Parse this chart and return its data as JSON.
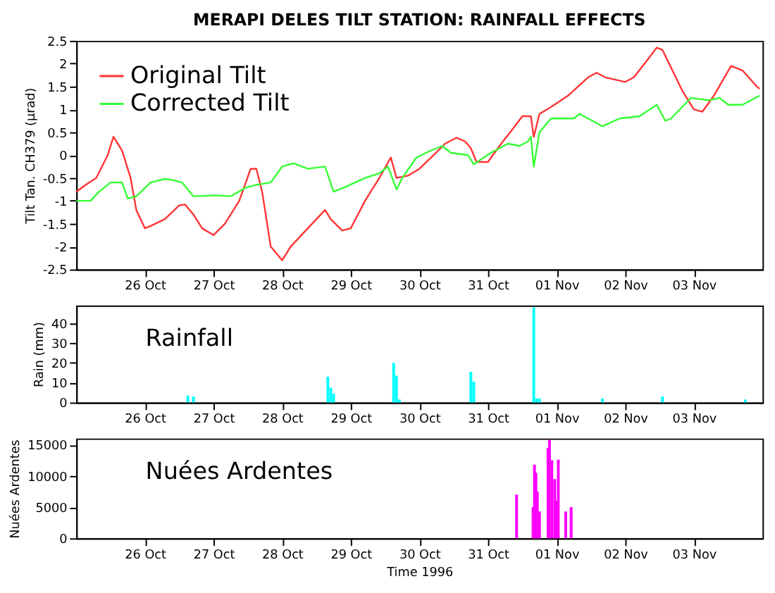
{
  "chart_data": [
    {
      "type": "line",
      "title": "MERAPI DELES TILT STATION: RAINFALL EFFECTS",
      "ylabel": "Tilt Tan. CH379 (µrad)",
      "legend": "top left",
      "grid": false,
      "marker": "none",
      "line_style": "solid",
      "xlim": [
        "1996-10-25T00:00",
        "1996-11-04T00:00"
      ],
      "xticks": [
        {
          "value": "1996-10-26",
          "label": "26 Oct"
        },
        {
          "value": "1996-10-27",
          "label": "27 Oct"
        },
        {
          "value": "1996-10-28",
          "label": "28 Oct"
        },
        {
          "value": "1996-10-29",
          "label": "29 Oct"
        },
        {
          "value": "1996-10-30",
          "label": "30 Oct"
        },
        {
          "value": "1996-10-31",
          "label": "31 Oct"
        },
        {
          "value": "1996-11-01",
          "label": "01 Nov"
        },
        {
          "value": "1996-11-02",
          "label": "02 Nov"
        },
        {
          "value": "1996-11-03",
          "label": "03 Nov"
        }
      ],
      "ylim": [
        -2.5,
        2.5
      ],
      "yticks": [
        -2.5,
        -2,
        -1.5,
        -1,
        -0.5,
        0,
        0.5,
        1,
        1.5,
        2,
        2.5
      ],
      "series": [
        {
          "name": "Original Tilt",
          "color": "#ff3333",
          "x": [
            "1996-10-25T00:00",
            "1996-10-25T04:00",
            "1996-10-25T07:00",
            "1996-10-25T11:00",
            "1996-10-25T13:00",
            "1996-10-25T16:00",
            "1996-10-25T19:00",
            "1996-10-25T21:00",
            "1996-10-26T00:00",
            "1996-10-26T02:00",
            "1996-10-26T07:00",
            "1996-10-26T12:00",
            "1996-10-26T14:00",
            "1996-10-26T17:00",
            "1996-10-26T20:00",
            "1996-10-27T00:00",
            "1996-10-27T04:00",
            "1996-10-27T09:00",
            "1996-10-27T13:00",
            "1996-10-27T15:00",
            "1996-10-27T17:00",
            "1996-10-27T20:00",
            "1996-10-28T00:00",
            "1996-10-28T03:00",
            "1996-10-28T09:00",
            "1996-10-28T15:00",
            "1996-10-28T17:00",
            "1996-10-28T21:00",
            "1996-10-29T00:00",
            "1996-10-29T05:00",
            "1996-10-29T10:00",
            "1996-10-29T14:00",
            "1996-10-29T16:00",
            "1996-10-29T20:00",
            "1996-10-30T00:00",
            "1996-10-30T05:00",
            "1996-10-30T09:00",
            "1996-10-30T13:00",
            "1996-10-30T16:00",
            "1996-10-30T18:00",
            "1996-10-30T20:00",
            "1996-10-31T00:00",
            "1996-10-31T04:00",
            "1996-10-31T09:00",
            "1996-10-31T12:00",
            "1996-10-31T15:00",
            "1996-10-31T16:00",
            "1996-10-31T18:00",
            "1996-10-31T22:00",
            "1996-11-01T04:00",
            "1996-11-01T11:00",
            "1996-11-01T14:00",
            "1996-11-01T17:00",
            "1996-11-02T00:00",
            "1996-11-02T03:00",
            "1996-11-02T08:00",
            "1996-11-02T11:00",
            "1996-11-02T13:00",
            "1996-11-02T20:00",
            "1996-11-03T00:00",
            "1996-11-03T03:00",
            "1996-11-03T07:00",
            "1996-11-03T13:00",
            "1996-11-03T17:00",
            "1996-11-03T22:00",
            "1996-11-03T23:00"
          ],
          "values": [
            -0.8,
            -0.62,
            -0.5,
            0.0,
            0.4,
            0.1,
            -0.5,
            -1.2,
            -1.6,
            -1.55,
            -1.4,
            -1.1,
            -1.08,
            -1.3,
            -1.6,
            -1.75,
            -1.5,
            -1.0,
            -0.3,
            -0.3,
            -0.8,
            -2.0,
            -2.3,
            -2.0,
            -1.6,
            -1.2,
            -1.4,
            -1.65,
            -1.6,
            -1.0,
            -0.5,
            -0.05,
            -0.5,
            -0.45,
            -0.3,
            0.0,
            0.25,
            0.38,
            0.3,
            0.15,
            -0.15,
            -0.15,
            0.2,
            0.6,
            0.85,
            0.85,
            0.4,
            0.9,
            1.05,
            1.3,
            1.7,
            1.8,
            1.7,
            1.6,
            1.7,
            2.1,
            2.35,
            2.3,
            1.4,
            1.0,
            0.95,
            1.3,
            1.95,
            1.85,
            1.5,
            1.45
          ]
        },
        {
          "name": "Corrected Tilt",
          "color": "#33ff33",
          "x": [
            "1996-10-25T00:00",
            "1996-10-25T05:00",
            "1996-10-25T08:00",
            "1996-10-25T12:00",
            "1996-10-25T16:00",
            "1996-10-25T18:00",
            "1996-10-25T21:00",
            "1996-10-26T02:00",
            "1996-10-26T07:00",
            "1996-10-26T10:00",
            "1996-10-26T13:00",
            "1996-10-26T17:00",
            "1996-10-27T01:00",
            "1996-10-27T06:00",
            "1996-10-27T11:00",
            "1996-10-27T15:00",
            "1996-10-27T20:00",
            "1996-10-28T00:00",
            "1996-10-28T04:00",
            "1996-10-28T09:00",
            "1996-10-28T15:00",
            "1996-10-28T18:00",
            "1996-10-28T22:00",
            "1996-10-29T05:00",
            "1996-10-29T10:00",
            "1996-10-29T13:00",
            "1996-10-29T16:00",
            "1996-10-29T18:00",
            "1996-10-29T23:00",
            "1996-10-30T04:00",
            "1996-10-30T08:00",
            "1996-10-30T11:00",
            "1996-10-30T17:00",
            "1996-10-30T19:00",
            "1996-10-31T01:00",
            "1996-10-31T07:00",
            "1996-10-31T11:00",
            "1996-10-31T14:00",
            "1996-10-31T15:00",
            "1996-10-31T16:00",
            "1996-10-31T18:00",
            "1996-10-31T22:00",
            "1996-11-01T06:00",
            "1996-11-01T08:00",
            "1996-11-01T11:00",
            "1996-11-01T16:00",
            "1996-11-01T22:00",
            "1996-11-02T05:00",
            "1996-11-02T11:00",
            "1996-11-02T14:00",
            "1996-11-02T16:00",
            "1996-11-02T23:00",
            "1996-11-03T05:00",
            "1996-11-03T09:00",
            "1996-11-03T12:00",
            "1996-11-03T17:00",
            "1996-11-03T23:00"
          ],
          "values": [
            -1.0,
            -1.0,
            -0.8,
            -0.6,
            -0.6,
            -0.95,
            -0.9,
            -0.6,
            -0.52,
            -0.55,
            -0.6,
            -0.9,
            -0.88,
            -0.9,
            -0.72,
            -0.65,
            -0.6,
            -0.25,
            -0.18,
            -0.3,
            -0.25,
            -0.8,
            -0.7,
            -0.5,
            -0.4,
            -0.25,
            -0.75,
            -0.5,
            -0.05,
            0.1,
            0.2,
            0.05,
            0.0,
            -0.2,
            0.05,
            0.25,
            0.2,
            0.3,
            0.4,
            -0.25,
            0.5,
            0.8,
            0.8,
            0.9,
            0.8,
            0.63,
            0.8,
            0.85,
            1.1,
            0.75,
            0.8,
            1.25,
            1.2,
            1.25,
            1.1,
            1.1,
            1.3
          ]
        }
      ]
    },
    {
      "type": "bar",
      "ylabel": "Rain (mm)",
      "annotations": [
        "Rainfall"
      ],
      "grid": false,
      "color": "#00ffff",
      "xlim": [
        "1996-10-25T00:00",
        "1996-11-04T00:00"
      ],
      "xticks": [
        {
          "value": "1996-10-26",
          "label": "26 Oct"
        },
        {
          "value": "1996-10-27",
          "label": "27 Oct"
        },
        {
          "value": "1996-10-28",
          "label": "28 Oct"
        },
        {
          "value": "1996-10-29",
          "label": "29 Oct"
        },
        {
          "value": "1996-10-30",
          "label": "30 Oct"
        },
        {
          "value": "1996-10-31",
          "label": "31 Oct"
        },
        {
          "value": "1996-11-01",
          "label": "01 Nov"
        },
        {
          "value": "1996-11-02",
          "label": "02 Nov"
        },
        {
          "value": "1996-11-03",
          "label": "03 Nov"
        }
      ],
      "ylim": [
        0,
        49
      ],
      "yticks": [
        0,
        10,
        20,
        30,
        40
      ],
      "x": [
        "1996-10-26T15:00",
        "1996-10-26T17:00",
        "1996-10-28T16:00",
        "1996-10-28T17:00",
        "1996-10-28T18:00",
        "1996-10-29T15:00",
        "1996-10-29T16:00",
        "1996-10-29T17:00",
        "1996-10-30T18:00",
        "1996-10-30T19:00",
        "1996-10-31T16:00",
        "1996-10-31T17:00",
        "1996-10-31T18:00",
        "1996-11-01T16:00",
        "1996-11-02T13:00",
        "1996-11-03T18:00"
      ],
      "values": [
        3.5,
        3,
        13,
        7.5,
        4.5,
        20,
        13.5,
        1.5,
        15.5,
        10.5,
        48,
        2,
        2,
        2,
        3,
        1.5
      ]
    },
    {
      "type": "bar",
      "ylabel": "Nuées Ardentes",
      "xlabel": "Time 1996",
      "annotations": [
        "Nuées Ardentes"
      ],
      "grid": false,
      "color": "#ff00ff",
      "xlim": [
        "1996-10-25T00:00",
        "1996-11-04T00:00"
      ],
      "xticks": [
        {
          "value": "1996-10-26",
          "label": "26 Oct"
        },
        {
          "value": "1996-10-27",
          "label": "27 Oct"
        },
        {
          "value": "1996-10-28",
          "label": "28 Oct"
        },
        {
          "value": "1996-10-29",
          "label": "29 Oct"
        },
        {
          "value": "1996-10-30",
          "label": "30 Oct"
        },
        {
          "value": "1996-10-31",
          "label": "31 Oct"
        },
        {
          "value": "1996-11-01",
          "label": "01 Nov"
        },
        {
          "value": "1996-11-02",
          "label": "02 Nov"
        },
        {
          "value": "1996-11-03",
          "label": "03 Nov"
        }
      ],
      "ylim": [
        0,
        16000
      ],
      "yticks": [
        0,
        5000,
        10000,
        15000
      ],
      "x": [
        "1996-10-31T10:00",
        "1996-10-31T15:45",
        "1996-10-31T16:15",
        "1996-10-31T16:45",
        "1996-10-31T17:15",
        "1996-10-31T18:00",
        "1996-10-31T21:00",
        "1996-10-31T21:30",
        "1996-10-31T22:20",
        "1996-10-31T23:20",
        "1996-11-01T00:05",
        "1996-11-01T00:35",
        "1996-11-01T03:10",
        "1996-11-01T05:05"
      ],
      "values": [
        7000,
        5000,
        11800,
        10500,
        7500,
        4300,
        14500,
        15800,
        12500,
        9500,
        6000,
        12600,
        4300,
        5000
      ]
    }
  ]
}
